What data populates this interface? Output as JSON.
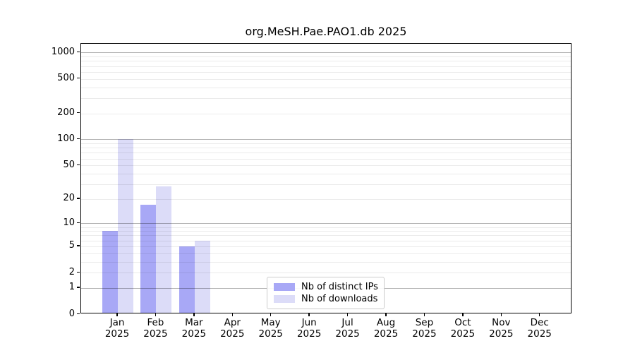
{
  "chart_data": {
    "type": "bar",
    "title": "org.MeSH.Pae.PAO1.db 2025",
    "months": [
      "Jan",
      "Feb",
      "Mar",
      "Apr",
      "May",
      "Jun",
      "Jul",
      "Aug",
      "Sep",
      "Oct",
      "Nov",
      "Dec"
    ],
    "year": "2025",
    "series": [
      {
        "name": "Nb of distinct IPs",
        "color": "#a8a8f6",
        "values": [
          8,
          17,
          5,
          0,
          0,
          0,
          0,
          0,
          0,
          0,
          0,
          0
        ]
      },
      {
        "name": "Nb of downloads",
        "color": "#dcdcf8",
        "values": [
          100,
          28,
          6,
          0,
          0,
          0,
          0,
          0,
          0,
          0,
          0,
          0
        ]
      }
    ],
    "yticks": [
      0,
      1,
      2,
      5,
      10,
      20,
      50,
      100,
      200,
      500,
      1000
    ],
    "grid": {
      "major": [
        1,
        10,
        100,
        1000
      ],
      "minor": [
        2,
        3,
        4,
        5,
        6,
        7,
        8,
        9,
        20,
        30,
        40,
        50,
        60,
        70,
        80,
        90,
        200,
        300,
        400,
        500,
        600,
        700,
        800,
        900
      ]
    },
    "yscale": "log10(value+1)",
    "ylim": [
      0,
      1260
    ],
    "grid_on": true,
    "legend_position": "lower-center"
  }
}
